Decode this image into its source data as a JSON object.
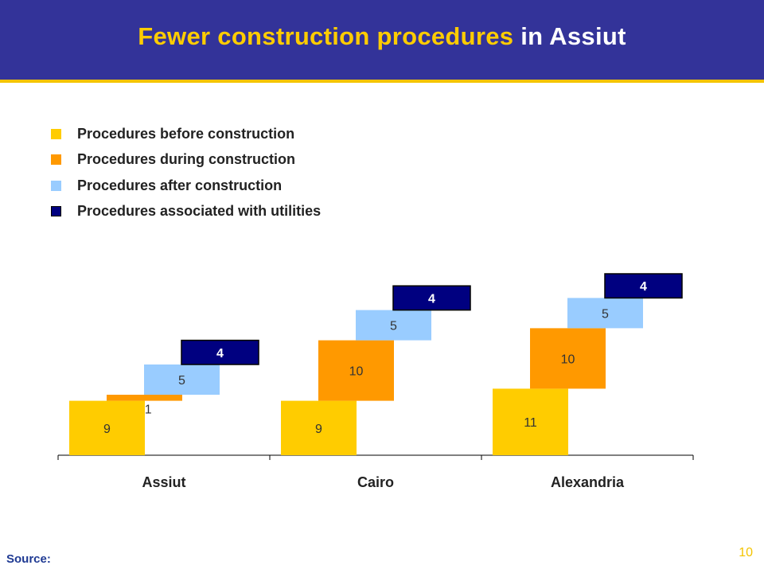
{
  "slide": {
    "title_highlight": "Fewer construction procedures",
    "title_rest": " in Assiut",
    "source": "Source:",
    "page_number": "10"
  },
  "colors": {
    "title_bg": "#333399",
    "accent_gold": "#F4C400",
    "before": "#FFCC00",
    "during": "#FF9900",
    "after": "#99CCFF",
    "utilities": "#000080"
  },
  "chart_data": {
    "type": "bar",
    "stacking": "waterfall",
    "categories": [
      "Assiut",
      "Cairo",
      "Alexandria"
    ],
    "series": [
      {
        "name": "Procedures before construction",
        "values": [
          9,
          9,
          11
        ]
      },
      {
        "name": "Procedures during construction",
        "values": [
          1,
          10,
          10
        ]
      },
      {
        "name": "Procedures after construction",
        "values": [
          5,
          5,
          5
        ]
      },
      {
        "name": "Procedures associated with utilities",
        "values": [
          4,
          4,
          4
        ]
      }
    ],
    "legend": "top-left",
    "grid": false,
    "title": "",
    "xlabel": "",
    "ylabel": ""
  }
}
